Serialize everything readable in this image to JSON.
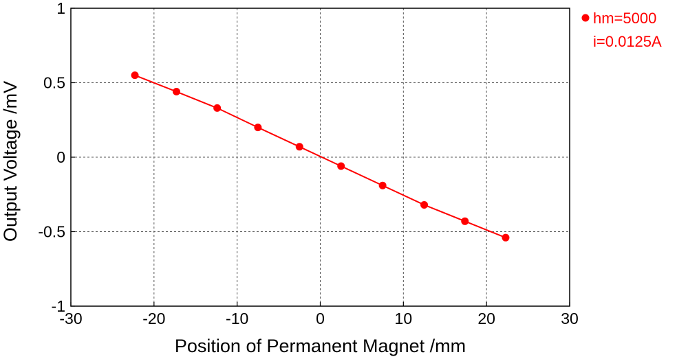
{
  "chart_data": {
    "type": "line",
    "xlabel": "Position of Permanent Magnet /mm",
    "ylabel": "Output Voltage /mV",
    "xlim": [
      -30,
      30
    ],
    "ylim": [
      -1,
      1
    ],
    "xticks": [
      -30,
      -20,
      -10,
      0,
      10,
      20,
      30
    ],
    "yticks": [
      -1,
      -0.5,
      0,
      0.5,
      1
    ],
    "xtick_labels": [
      "-30",
      "-20",
      "-10",
      "0",
      "10",
      "20",
      "30"
    ],
    "ytick_labels": [
      "-1",
      "-0.5",
      "0",
      "0.5",
      "1"
    ],
    "grid": true,
    "legend_position": "top-right-outside",
    "series": [
      {
        "color": "#ff0000",
        "legend_lines": [
          "hm=5000",
          "i=0.0125A"
        ],
        "x": [
          -22.3,
          -17.3,
          -12.4,
          -7.5,
          -2.5,
          2.5,
          7.5,
          12.5,
          17.4,
          22.3
        ],
        "y": [
          0.55,
          0.44,
          0.33,
          0.2,
          0.07,
          -0.06,
          -0.19,
          -0.32,
          -0.43,
          -0.54
        ]
      }
    ]
  }
}
